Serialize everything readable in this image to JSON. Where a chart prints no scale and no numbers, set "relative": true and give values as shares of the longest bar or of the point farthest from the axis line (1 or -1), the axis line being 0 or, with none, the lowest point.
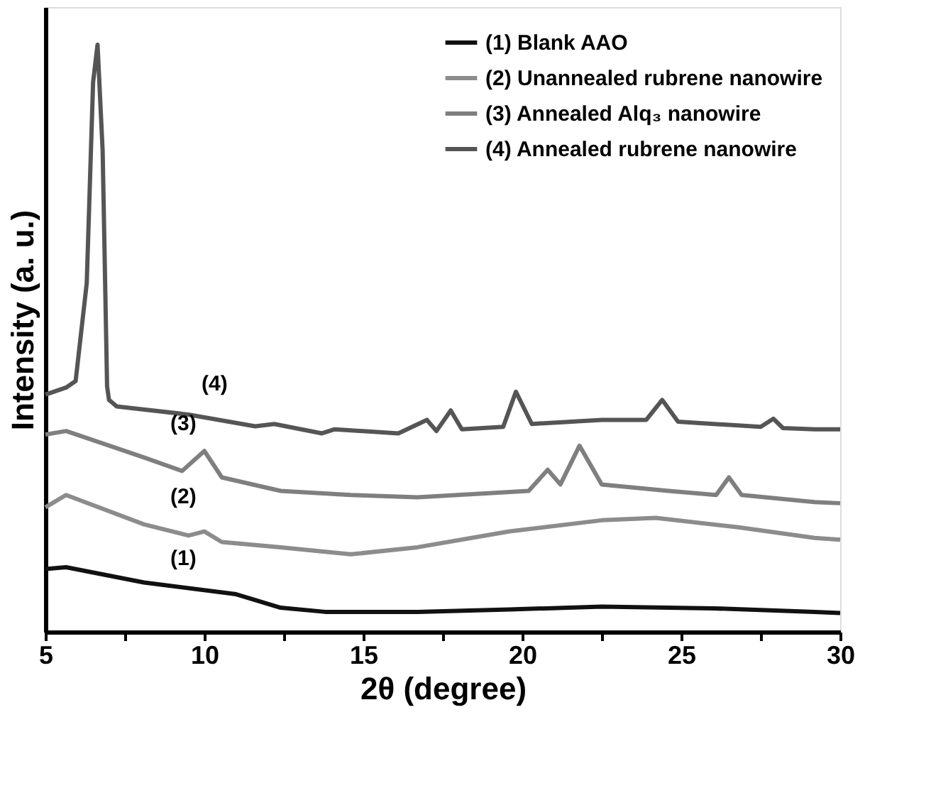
{
  "chart_data": {
    "type": "line",
    "relative": true,
    "xlabel": "2θ (degree)",
    "ylabel": "Intensity (a. u.)",
    "xlim": [
      5,
      30
    ],
    "xticks": [
      5,
      {
        "value": 7.5,
        "label": null
      },
      10,
      {
        "value": 12.5,
        "label": null
      },
      15,
      {
        "value": 17.5,
        "label": null
      },
      20,
      {
        "value": 22.5,
        "label": null
      },
      25,
      {
        "value": 27.5,
        "label": null
      },
      30
    ],
    "grid": false,
    "legend": "top right",
    "tick_labels": "x",
    "line_style": "solid",
    "marker": "none",
    "series": [
      {
        "name": "(1) Blank AAO",
        "color": "#111111",
        "x": [
          5,
          5.65,
          8.1,
          11.0,
          12.4,
          13.8,
          16.7,
          19.6,
          22.5,
          26.0,
          29.2,
          30
        ],
        "values": [
          0.107,
          0.11,
          0.084,
          0.064,
          0.041,
          0.034,
          0.034,
          0.038,
          0.043,
          0.04,
          0.034,
          0.032
        ]
      },
      {
        "name": "(2) Unannealed rubrene nanowire",
        "color": "#8c8c8c",
        "x": [
          5,
          5.65,
          8.1,
          9.5,
          10.0,
          10.55,
          12.4,
          14.6,
          16.7,
          19.6,
          22.5,
          24.2,
          26.8,
          29.2,
          30
        ],
        "values": [
          0.212,
          0.233,
          0.183,
          0.164,
          0.171,
          0.153,
          0.144,
          0.132,
          0.144,
          0.171,
          0.19,
          0.194,
          0.178,
          0.16,
          0.157
        ]
      },
      {
        "name": "(3) Annealed Alq₃ nanowire",
        "color": "#7f7f7f",
        "x": [
          5,
          5.65,
          8.1,
          9.3,
          10.0,
          10.55,
          12.4,
          14.6,
          16.7,
          20.2,
          20.8,
          21.2,
          21.8,
          22.5,
          24.6,
          26.1,
          26.5,
          26.9,
          29.2,
          30
        ],
        "values": [
          0.336,
          0.342,
          0.297,
          0.274,
          0.308,
          0.263,
          0.24,
          0.233,
          0.229,
          0.24,
          0.276,
          0.251,
          0.317,
          0.251,
          0.24,
          0.233,
          0.263,
          0.233,
          0.221,
          0.219
        ]
      },
      {
        "name": "(4) Annealed rubrene nanowire",
        "color": "#555555",
        "x": [
          5,
          5.65,
          5.95,
          6.3,
          6.5,
          6.64,
          6.8,
          6.94,
          7.0,
          7.24,
          9.5,
          11.6,
          12.2,
          13.7,
          14.1,
          16.1,
          17.0,
          17.3,
          17.75,
          18.1,
          19.4,
          19.8,
          20.3,
          22.5,
          23.9,
          24.4,
          24.9,
          27.5,
          27.9,
          28.2,
          29.2,
          30
        ],
        "values": [
          0.404,
          0.416,
          0.427,
          0.594,
          0.936,
          1.0,
          0.82,
          0.418,
          0.395,
          0.384,
          0.37,
          0.35,
          0.354,
          0.338,
          0.345,
          0.338,
          0.361,
          0.342,
          0.377,
          0.345,
          0.349,
          0.409,
          0.354,
          0.361,
          0.361,
          0.395,
          0.358,
          0.349,
          0.363,
          0.347,
          0.345,
          0.345
        ]
      }
    ],
    "annotations": [
      "(1)",
      "(2)",
      "(3)",
      "(4)"
    ]
  }
}
